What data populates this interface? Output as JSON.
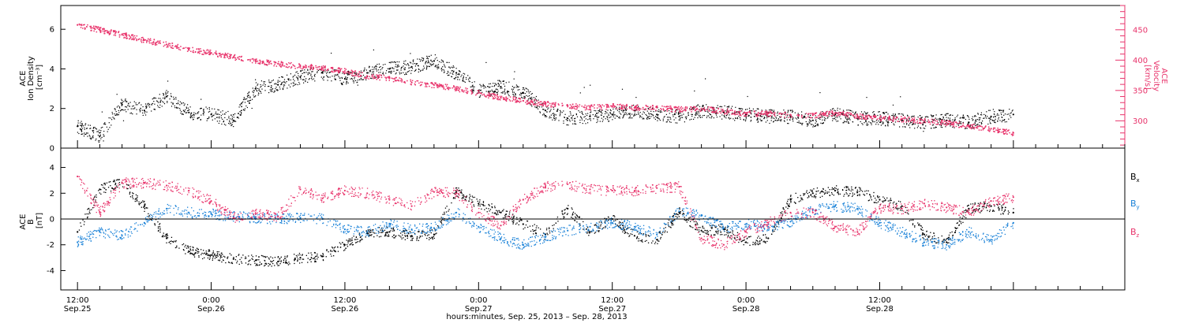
{
  "chart_data": [
    {
      "type": "scatter",
      "panel": "ace-density-velocity",
      "left_axis": {
        "label_lines": [
          "ACE",
          "Ion Density",
          "[cm⁻³]"
        ],
        "ylim": [
          0,
          7.2
        ],
        "ticks": [
          0,
          2,
          4,
          6
        ],
        "color": "#000000"
      },
      "right_axis": {
        "label_lines": [
          "ACE",
          "Velocity",
          "[km/s]"
        ],
        "ylim": [
          255,
          490
        ],
        "ticks": [
          300,
          350,
          400,
          450
        ],
        "color": "#e8336b"
      },
      "series": [
        {
          "axis": "left",
          "color": "#000000",
          "x": [
            0,
            2,
            4,
            6,
            8,
            10,
            12,
            14,
            16,
            18,
            20,
            22,
            24,
            26,
            28,
            30,
            32,
            34,
            36,
            38,
            40,
            42,
            44,
            46,
            48,
            50,
            52,
            54,
            56,
            58,
            60,
            62,
            64,
            66,
            68,
            70,
            72,
            74,
            76,
            78,
            80,
            82,
            84
          ],
          "y": [
            1.1,
            0.6,
            2.2,
            1.9,
            2.6,
            1.8,
            1.7,
            1.4,
            3.0,
            3.2,
            3.6,
            3.8,
            3.5,
            3.8,
            4.0,
            4.1,
            4.4,
            3.8,
            2.9,
            3.1,
            2.8,
            1.9,
            1.5,
            1.6,
            1.7,
            1.9,
            1.7,
            1.6,
            1.9,
            1.8,
            1.7,
            1.6,
            1.6,
            1.4,
            1.7,
            1.5,
            1.5,
            1.4,
            1.3,
            1.4,
            1.3,
            1.6,
            1.7
          ]
        },
        {
          "axis": "right",
          "color": "#e8336b",
          "x": [
            0,
            2,
            4,
            6,
            8,
            10,
            12,
            14,
            16,
            18,
            20,
            22,
            24,
            26,
            28,
            30,
            32,
            34,
            36,
            38,
            40,
            42,
            44,
            46,
            48,
            50,
            52,
            54,
            56,
            58,
            60,
            62,
            64,
            66,
            68,
            70,
            72,
            74,
            76,
            78,
            80,
            82,
            84
          ],
          "y": [
            458,
            450,
            442,
            433,
            426,
            418,
            412,
            405,
            398,
            394,
            390,
            387,
            382,
            374,
            370,
            363,
            359,
            353,
            346,
            338,
            333,
            328,
            325,
            322,
            324,
            322,
            322,
            319,
            320,
            316,
            312,
            312,
            310,
            309,
            313,
            308,
            304,
            303,
            300,
            297,
            291,
            287,
            280
          ]
        }
      ]
    },
    {
      "type": "scatter",
      "panel": "ace-magnetic-field",
      "left_axis": {
        "label_lines": [
          "ACE",
          "B",
          "[nT]"
        ],
        "ylim": [
          -5.5,
          5.5
        ],
        "ticks": [
          -4,
          -2,
          0,
          2,
          4
        ]
      },
      "zero_line": true,
      "series": [
        {
          "name": "Bx",
          "label_main": "B",
          "label_sub": "x",
          "color": "#000000",
          "x": [
            0,
            2,
            4,
            6,
            8,
            10,
            12,
            14,
            16,
            18,
            20,
            22,
            24,
            26,
            28,
            30,
            32,
            34,
            36,
            38,
            40,
            42,
            44,
            46,
            48,
            50,
            52,
            54,
            56,
            58,
            60,
            62,
            64,
            66,
            68,
            70,
            72,
            74,
            76,
            78,
            80,
            82,
            84
          ],
          "y": [
            -1.0,
            2.3,
            2.8,
            1.0,
            -1.5,
            -2.5,
            -2.8,
            -3.1,
            -3.2,
            -3.3,
            -3.0,
            -2.9,
            -2.0,
            -1.1,
            -1.0,
            -1.3,
            -1.2,
            2.1,
            1.2,
            0.5,
            -0.4,
            -1.2,
            0.8,
            -1.0,
            0.0,
            -1.3,
            -1.6,
            0.5,
            -0.9,
            -0.8,
            -1.8,
            -1.5,
            1.5,
            2.0,
            2.2,
            2.1,
            1.5,
            1.0,
            -1.2,
            -1.8,
            0.8,
            1.0,
            0.5
          ]
        },
        {
          "name": "By",
          "label_main": "B",
          "label_sub": "y",
          "color": "#1a82d8",
          "x": [
            0,
            2,
            4,
            6,
            8,
            10,
            12,
            14,
            16,
            18,
            20,
            22,
            24,
            26,
            28,
            30,
            32,
            34,
            36,
            38,
            40,
            42,
            44,
            46,
            48,
            50,
            52,
            54,
            56,
            58,
            60,
            62,
            64,
            66,
            68,
            70,
            72,
            74,
            76,
            78,
            80,
            82,
            84
          ],
          "y": [
            -1.8,
            -1.0,
            -1.3,
            -0.3,
            0.8,
            0.5,
            0.4,
            0.2,
            0.1,
            0.0,
            0.1,
            0.0,
            -0.8,
            -1.0,
            -0.4,
            -0.8,
            -0.7,
            0.5,
            -0.6,
            -1.5,
            -2.0,
            -1.4,
            -0.9,
            -0.6,
            -0.3,
            -0.6,
            -1.2,
            0.6,
            0.3,
            -0.7,
            -0.4,
            -0.6,
            -0.2,
            0.7,
            1.0,
            0.8,
            -0.3,
            -1.0,
            -1.8,
            -2.0,
            -1.0,
            -1.6,
            -0.3
          ]
        },
        {
          "name": "Bz",
          "label_main": "B",
          "label_sub": "z",
          "color": "#e8336b",
          "x": [
            0,
            2,
            4,
            6,
            8,
            10,
            12,
            14,
            16,
            18,
            20,
            22,
            24,
            26,
            28,
            30,
            32,
            34,
            36,
            38,
            40,
            42,
            44,
            46,
            48,
            50,
            52,
            54,
            56,
            58,
            60,
            62,
            64,
            66,
            68,
            70,
            72,
            74,
            76,
            78,
            80,
            82,
            84
          ],
          "y": [
            3.3,
            0.5,
            2.8,
            2.8,
            2.6,
            2.2,
            1.4,
            0.1,
            0.4,
            0.2,
            2.3,
            1.6,
            2.2,
            2.0,
            1.5,
            1.0,
            2.1,
            2.0,
            0.5,
            -0.5,
            1.5,
            2.5,
            2.7,
            2.3,
            2.2,
            2.2,
            2.4,
            2.5,
            -1.5,
            -2.0,
            -1.0,
            -0.3,
            0.5,
            0.5,
            -0.6,
            -1.0,
            0.8,
            0.8,
            1.2,
            0.9,
            0.5,
            1.4,
            1.7
          ]
        }
      ]
    }
  ],
  "x_axis": {
    "xlim": [
      -1.5,
      94
    ],
    "ticks": [
      {
        "x": 0,
        "time": "12:00",
        "date": "Sep.25"
      },
      {
        "x": 12,
        "time": "0:00",
        "date": "Sep.26"
      },
      {
        "x": 24,
        "time": "12:00",
        "date": "Sep.26"
      },
      {
        "x": 36,
        "time": "0:00",
        "date": "Sep.27"
      },
      {
        "x": 48,
        "time": "12:00",
        "date": "Sep.27"
      },
      {
        "x": 60,
        "time": "0:00",
        "date": "Sep.28"
      },
      {
        "x": 72,
        "time": "12:00",
        "date": "Sep.28"
      }
    ],
    "label": "hours:minutes, Sep. 25, 2013 – Sep. 28, 2013"
  }
}
